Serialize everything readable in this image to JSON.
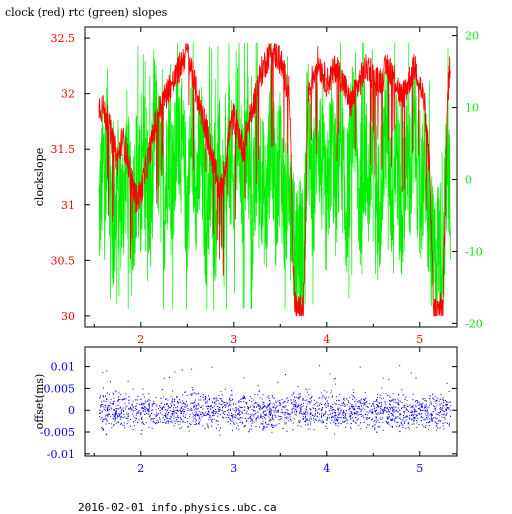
{
  "title": "clock (red) rtc (green) slopes",
  "footer": "2016-02-01 info.physics.ubc.ca",
  "colors": {
    "clock": "#ff0000",
    "rtc": "#00ee00",
    "offset": "#0000ff",
    "axis": "#000000"
  },
  "chart_data": [
    {
      "type": "line",
      "title": "clock (red) rtc (green) slopes",
      "xlabel": "",
      "ylabel": "clockslope",
      "xlim": [
        1.4,
        5.4
      ],
      "ylim": [
        29.9,
        32.6
      ],
      "y2lim": [
        -20.5,
        21.2
      ],
      "x_ticks": [
        2,
        3,
        4,
        5
      ],
      "y_ticks": [
        30,
        30.5,
        31,
        31.5,
        32,
        32.5
      ],
      "y_tick_labels": [
        "30",
        "30.5",
        "31",
        "31.5",
        "32",
        "32.5"
      ],
      "y2_ticks": [
        -20,
        -10,
        0,
        10,
        20
      ],
      "grid": false,
      "series": [
        {
          "name": "clock",
          "axis": "left",
          "color": "#ff0000",
          "x": [
            1.55,
            1.6,
            1.65,
            1.7,
            1.75,
            1.8,
            1.85,
            1.9,
            1.95,
            2.0,
            2.05,
            2.1,
            2.15,
            2.2,
            2.25,
            2.3,
            2.35,
            2.4,
            2.45,
            2.5,
            2.55,
            2.6,
            2.65,
            2.7,
            2.75,
            2.8,
            2.85,
            2.9,
            2.95,
            3.0,
            3.05,
            3.1,
            3.15,
            3.2,
            3.25,
            3.3,
            3.35,
            3.4,
            3.45,
            3.5,
            3.55,
            3.6,
            3.65,
            3.7,
            3.75,
            3.8,
            3.85,
            3.9,
            3.95,
            4.0,
            4.05,
            4.1,
            4.15,
            4.2,
            4.25,
            4.3,
            4.35,
            4.4,
            4.45,
            4.5,
            4.55,
            4.6,
            4.65,
            4.7,
            4.75,
            4.8,
            4.85,
            4.9,
            4.95,
            5.0,
            5.05,
            5.1,
            5.15,
            5.2,
            5.25,
            5.3,
            5.33
          ],
          "values": [
            31.9,
            31.85,
            31.75,
            31.55,
            31.4,
            31.6,
            31.45,
            31.2,
            31.05,
            31.1,
            31.3,
            31.5,
            31.7,
            31.85,
            31.95,
            32.05,
            32.1,
            32.2,
            32.3,
            32.4,
            32.2,
            32.0,
            31.85,
            31.7,
            31.5,
            31.3,
            31.1,
            31.3,
            31.65,
            31.8,
            31.65,
            31.5,
            31.7,
            31.85,
            32.05,
            32.2,
            32.3,
            32.4,
            32.35,
            32.3,
            32.15,
            32.0,
            30.1,
            30.05,
            30.05,
            32.0,
            32.15,
            32.3,
            32.2,
            32.1,
            32.15,
            32.25,
            32.15,
            32.05,
            31.9,
            32.0,
            32.1,
            32.2,
            32.25,
            32.15,
            32.1,
            32.15,
            32.25,
            32.2,
            32.1,
            31.95,
            32.05,
            32.15,
            32.25,
            32.1,
            31.9,
            31.4,
            30.05,
            30.05,
            30.1,
            32.0,
            32.3
          ]
        },
        {
          "name": "rtc",
          "axis": "right",
          "color": "#00ee00",
          "x": [
            1.55,
            1.6,
            1.65,
            1.7,
            1.75,
            1.8,
            1.85,
            1.9,
            1.95,
            2.0,
            2.05,
            2.1,
            2.15,
            2.2,
            2.25,
            2.3,
            2.35,
            2.4,
            2.45,
            2.5,
            2.55,
            2.6,
            2.65,
            2.7,
            2.75,
            2.8,
            2.85,
            2.9,
            2.95,
            3.0,
            3.05,
            3.1,
            3.15,
            3.2,
            3.25,
            3.3,
            3.35,
            3.4,
            3.45,
            3.5,
            3.55,
            3.6,
            3.65,
            3.7,
            3.75,
            3.8,
            3.85,
            3.9,
            3.95,
            4.0,
            4.05,
            4.1,
            4.15,
            4.2,
            4.25,
            4.3,
            4.35,
            4.4,
            4.45,
            4.5,
            4.55,
            4.6,
            4.65,
            4.7,
            4.75,
            4.8,
            4.85,
            4.9,
            4.95,
            5.0,
            5.05,
            5.1,
            5.15,
            5.2,
            5.25,
            5.3,
            5.33
          ],
          "values": [
            -5,
            2,
            6,
            -8,
            0,
            -4,
            3,
            -7,
            1,
            -3,
            5,
            -6,
            8,
            2,
            -5,
            6,
            -2,
            9,
            3,
            -4,
            7,
            -1,
            4,
            -6,
            0,
            -5,
            2,
            -8,
            5,
            -3,
            9,
            -2,
            6,
            -7,
            4,
            1,
            -5,
            8,
            -3,
            5,
            -6,
            3,
            -10,
            -8,
            -11,
            7,
            -4,
            9,
            1,
            -5,
            6,
            -2,
            8,
            -6,
            3,
            10,
            -4,
            5,
            -1,
            7,
            -5,
            2,
            9,
            -3,
            6,
            -7,
            4,
            0,
            8,
            -4,
            3,
            -6,
            -12,
            -9,
            -10,
            4,
            -2
          ]
        }
      ]
    },
    {
      "type": "scatter",
      "title": "",
      "xlabel": "",
      "ylabel": "offset(ms)",
      "xlim": [
        1.4,
        5.4
      ],
      "ylim": [
        -0.0105,
        0.0145
      ],
      "x_ticks": [
        2,
        3,
        4,
        5
      ],
      "y_ticks": [
        -0.01,
        -0.005,
        0,
        0.005,
        0.01
      ],
      "y_tick_labels": [
        "-0.01",
        "-0.005",
        "0",
        "0.005",
        "0.01"
      ],
      "grid": false,
      "series": [
        {
          "name": "offset",
          "color": "#0000ff",
          "x_range": [
            1.55,
            5.33
          ],
          "center": 0.0,
          "typical_spread": 0.0025,
          "outlier_max": 0.012,
          "outlier_min": -0.008
        }
      ]
    }
  ]
}
